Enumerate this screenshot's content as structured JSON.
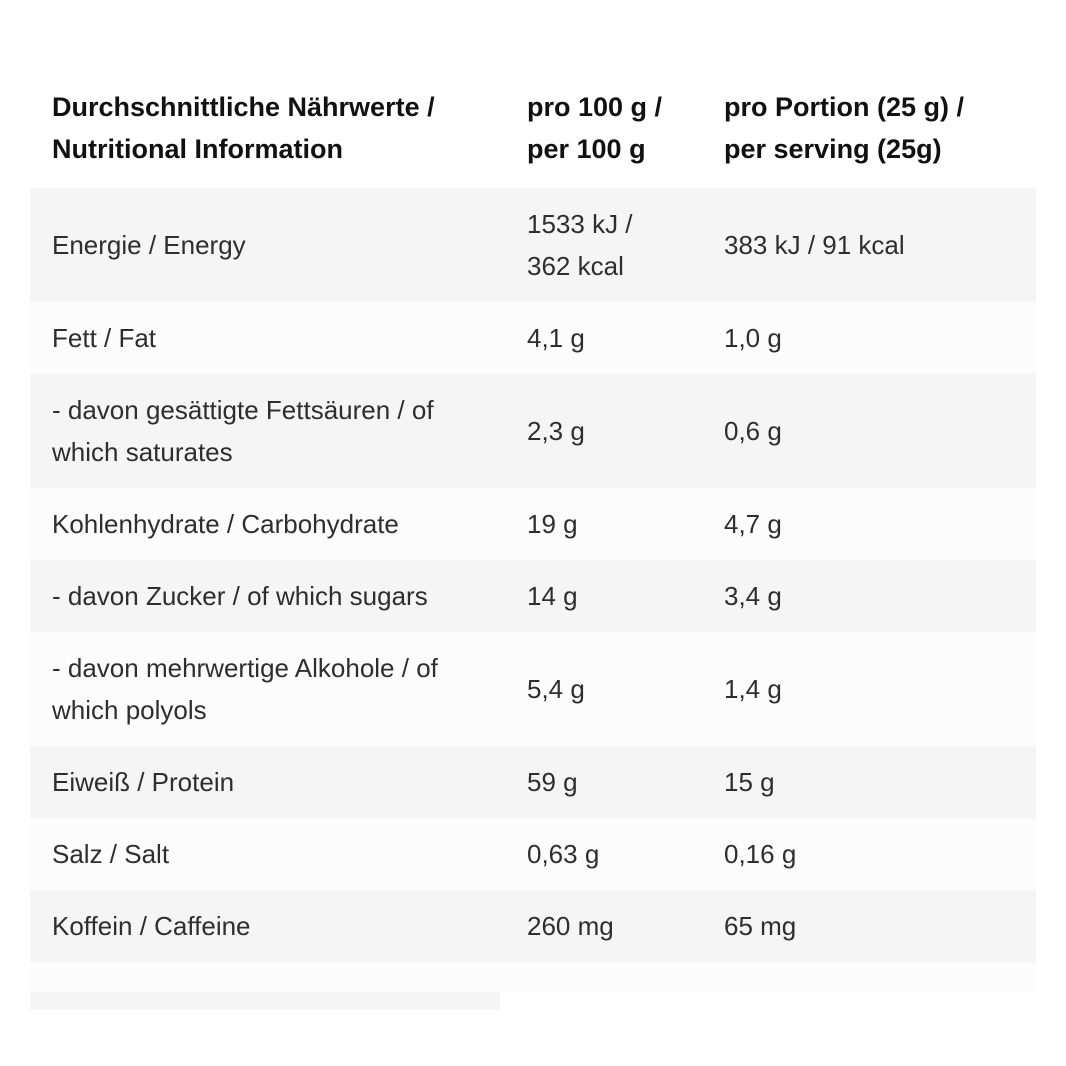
{
  "colors": {
    "row_shaded": "#f5f5f5",
    "row_light": "#fcfcfc",
    "header_text": "#111111",
    "body_text": "#2e2e2e"
  },
  "table": {
    "header": {
      "label": "Durchschnittliche Nährwerte /\nNutritional Information",
      "per100": "pro 100 g /\nper 100 g",
      "serving": "pro Portion (25 g) /\nper serving (25g)"
    },
    "rows": [
      {
        "label": "Energie / Energy",
        "per100": "1533 kJ /\n362 kcal",
        "serving": "383 kJ / 91 kcal"
      },
      {
        "label": "Fett / Fat",
        "per100": "4,1 g",
        "serving": "1,0 g"
      },
      {
        "label": "- davon gesättigte Fettsäuren / of which saturates",
        "per100": "2,3 g",
        "serving": "0,6 g"
      },
      {
        "label": "Kohlenhydrate / Carbohydrate",
        "per100": "19 g",
        "serving": "4,7 g"
      },
      {
        "label": "- davon Zucker / of which sugars",
        "per100": "14 g",
        "serving": "3,4 g"
      },
      {
        "label": "- davon mehrwertige Alkohole / of which polyols",
        "per100": "5,4 g",
        "serving": "1,4 g"
      },
      {
        "label": "Eiweiß / Protein",
        "per100": "59 g",
        "serving": "15 g"
      },
      {
        "label": "Salz / Salt",
        "per100": "0,63 g",
        "serving": "0,16 g"
      },
      {
        "label": "Koffein / Caffeine",
        "per100": "260 mg",
        "serving": "65 mg"
      }
    ]
  }
}
